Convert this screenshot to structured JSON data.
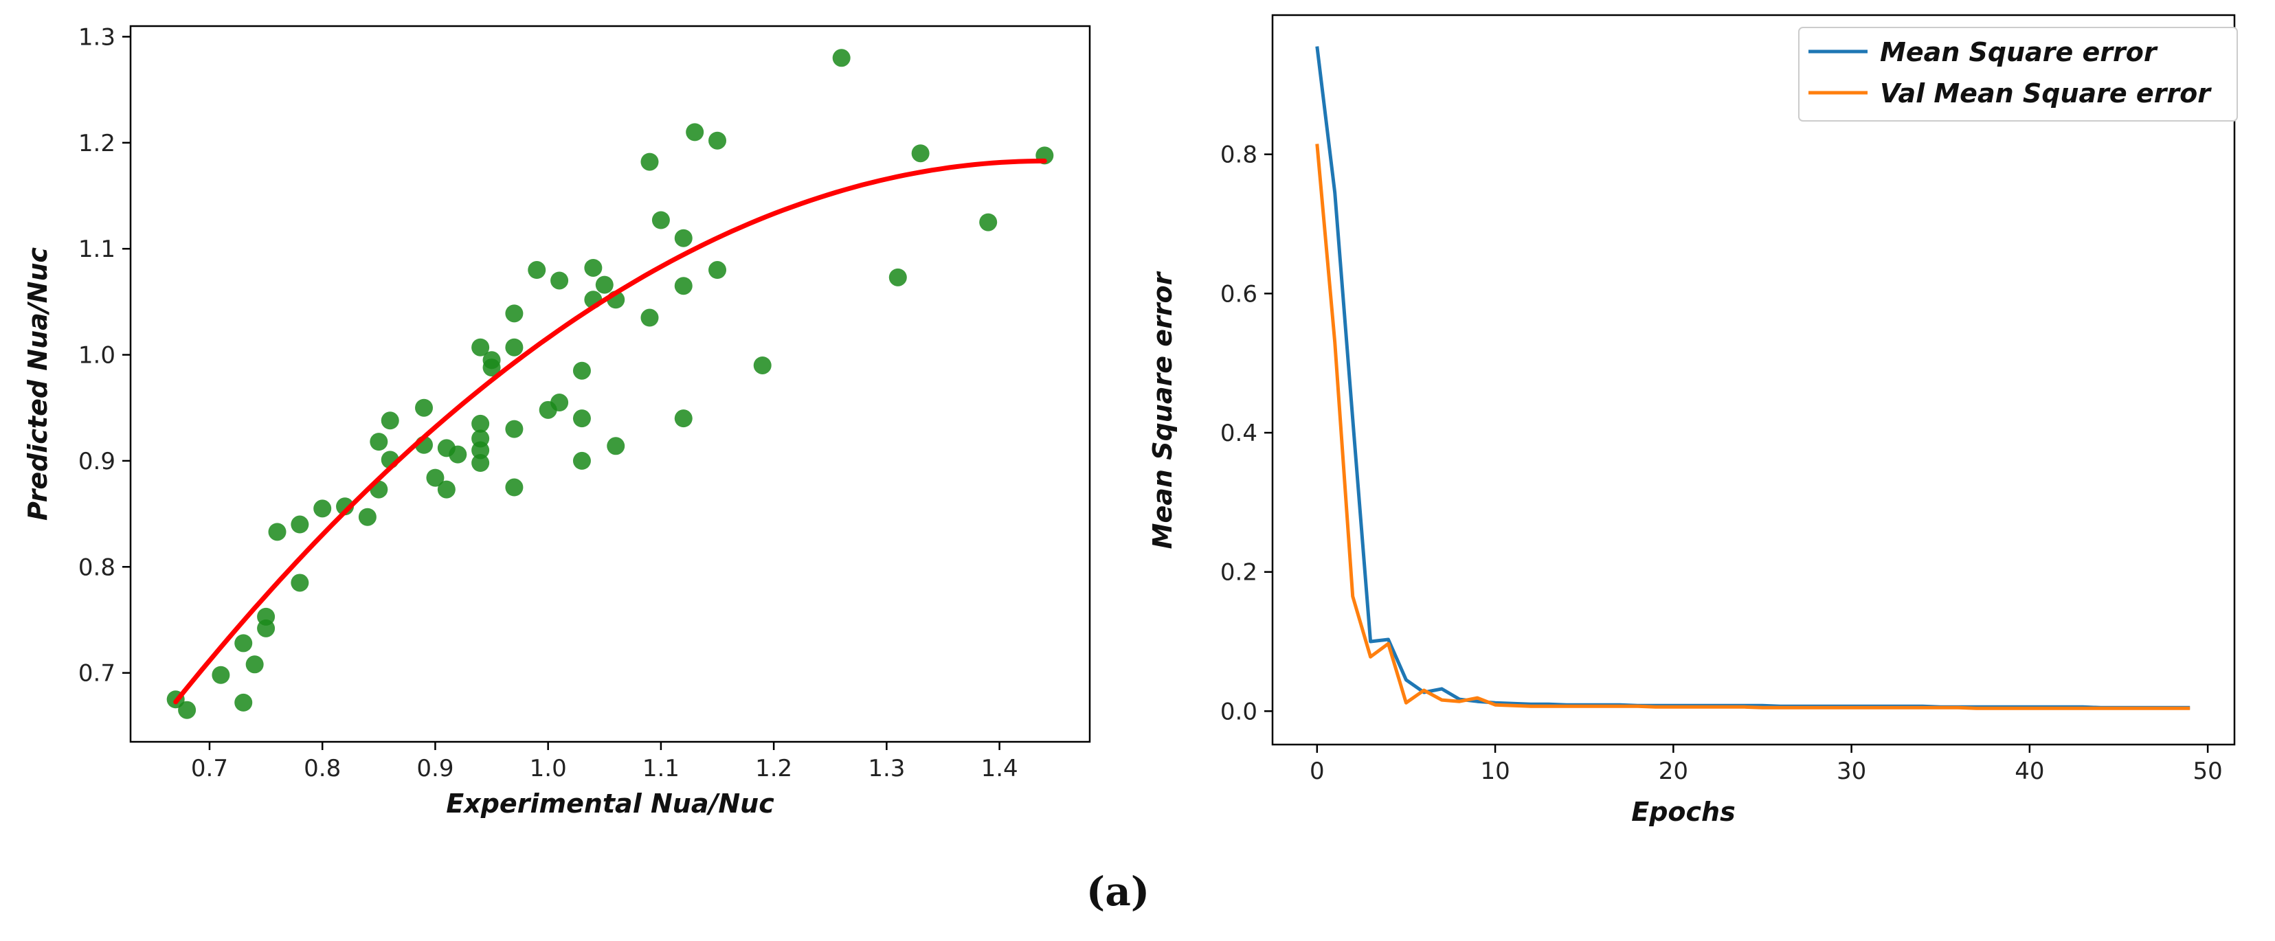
{
  "figure": {
    "caption": "(a)"
  },
  "chart_data": [
    {
      "type": "scatter",
      "name": "prediction-scatter",
      "xlabel": "Experimental Nua/Nuc",
      "ylabel": "Predicted Nua/Nuc",
      "xlim": [
        0.63,
        1.48
      ],
      "ylim": [
        0.635,
        1.31
      ],
      "xticks": [
        0.7,
        0.8,
        0.9,
        1.0,
        1.1,
        1.2,
        1.3,
        1.4
      ],
      "xtick_labels": [
        "0.7",
        "0.8",
        "0.9",
        "1.0",
        "1.1",
        "1.2",
        "1.3",
        "1.4"
      ],
      "yticks": [
        0.7,
        0.8,
        0.9,
        1.0,
        1.1,
        1.2,
        1.3
      ],
      "ytick_labels": [
        "0.7",
        "0.8",
        "0.9",
        "1.0",
        "1.1",
        "1.2",
        "1.3"
      ],
      "grid": false,
      "colors": {
        "points": "#1a8a1a",
        "fit": "#ff0000"
      },
      "points": [
        {
          "x": 0.67,
          "y": 0.675
        },
        {
          "x": 0.68,
          "y": 0.665
        },
        {
          "x": 0.71,
          "y": 0.698
        },
        {
          "x": 0.73,
          "y": 0.728
        },
        {
          "x": 0.73,
          "y": 0.672
        },
        {
          "x": 0.74,
          "y": 0.708
        },
        {
          "x": 0.75,
          "y": 0.742
        },
        {
          "x": 0.75,
          "y": 0.753
        },
        {
          "x": 0.76,
          "y": 0.833
        },
        {
          "x": 0.78,
          "y": 0.785
        },
        {
          "x": 0.78,
          "y": 0.84
        },
        {
          "x": 0.8,
          "y": 0.855
        },
        {
          "x": 0.82,
          "y": 0.857
        },
        {
          "x": 0.84,
          "y": 0.847
        },
        {
          "x": 0.85,
          "y": 0.873
        },
        {
          "x": 0.85,
          "y": 0.918
        },
        {
          "x": 0.86,
          "y": 0.938
        },
        {
          "x": 0.86,
          "y": 0.901
        },
        {
          "x": 0.89,
          "y": 0.915
        },
        {
          "x": 0.89,
          "y": 0.95
        },
        {
          "x": 0.9,
          "y": 0.884
        },
        {
          "x": 0.91,
          "y": 0.873
        },
        {
          "x": 0.91,
          "y": 0.912
        },
        {
          "x": 0.92,
          "y": 0.906
        },
        {
          "x": 0.94,
          "y": 0.898
        },
        {
          "x": 0.94,
          "y": 0.91
        },
        {
          "x": 0.94,
          "y": 0.921
        },
        {
          "x": 0.94,
          "y": 0.935
        },
        {
          "x": 0.94,
          "y": 1.007
        },
        {
          "x": 0.95,
          "y": 0.988
        },
        {
          "x": 0.95,
          "y": 0.995
        },
        {
          "x": 0.97,
          "y": 0.875
        },
        {
          "x": 0.97,
          "y": 0.93
        },
        {
          "x": 0.97,
          "y": 1.007
        },
        {
          "x": 0.97,
          "y": 1.039
        },
        {
          "x": 0.99,
          "y": 1.08
        },
        {
          "x": 1.0,
          "y": 0.948
        },
        {
          "x": 1.01,
          "y": 0.955
        },
        {
          "x": 1.01,
          "y": 1.07
        },
        {
          "x": 1.03,
          "y": 0.9
        },
        {
          "x": 1.03,
          "y": 0.94
        },
        {
          "x": 1.03,
          "y": 0.985
        },
        {
          "x": 1.04,
          "y": 1.052
        },
        {
          "x": 1.04,
          "y": 1.082
        },
        {
          "x": 1.05,
          "y": 1.066
        },
        {
          "x": 1.06,
          "y": 0.914
        },
        {
          "x": 1.06,
          "y": 1.052
        },
        {
          "x": 1.09,
          "y": 1.035
        },
        {
          "x": 1.09,
          "y": 1.182
        },
        {
          "x": 1.1,
          "y": 1.127
        },
        {
          "x": 1.12,
          "y": 0.94
        },
        {
          "x": 1.12,
          "y": 1.065
        },
        {
          "x": 1.12,
          "y": 1.11
        },
        {
          "x": 1.13,
          "y": 1.21
        },
        {
          "x": 1.15,
          "y": 1.08
        },
        {
          "x": 1.15,
          "y": 1.202
        },
        {
          "x": 1.19,
          "y": 0.99
        },
        {
          "x": 1.26,
          "y": 1.28
        },
        {
          "x": 1.31,
          "y": 1.073
        },
        {
          "x": 1.33,
          "y": 1.19
        },
        {
          "x": 1.39,
          "y": 1.125
        },
        {
          "x": 1.44,
          "y": 1.188
        }
      ],
      "fit_curve": {
        "type": "quadratic",
        "x_range": [
          0.67,
          1.44
        ],
        "equation": {
          "a": -0.859,
          "b": 2.475,
          "c": -0.6
        }
      }
    },
    {
      "type": "line",
      "name": "training-loss",
      "xlabel": "Epochs",
      "ylabel": "Mean Square error",
      "xlim": [
        -2.5,
        51.5
      ],
      "ylim": [
        -0.048,
        1.0
      ],
      "xticks": [
        0,
        10,
        20,
        30,
        40,
        50
      ],
      "xtick_labels": [
        "0",
        "10",
        "20",
        "30",
        "40",
        "50"
      ],
      "yticks": [
        0.0,
        0.2,
        0.4,
        0.6,
        0.8
      ],
      "ytick_labels": [
        "0.0",
        "0.2",
        "0.4",
        "0.6",
        "0.8"
      ],
      "grid": false,
      "legend_position": "top-right",
      "x": [
        0,
        1,
        2,
        3,
        4,
        5,
        6,
        7,
        8,
        9,
        10,
        11,
        12,
        13,
        14,
        15,
        16,
        17,
        18,
        19,
        20,
        21,
        22,
        23,
        24,
        25,
        26,
        27,
        28,
        29,
        30,
        31,
        32,
        33,
        34,
        35,
        36,
        37,
        38,
        39,
        40,
        41,
        42,
        43,
        44,
        45,
        46,
        47,
        48,
        49
      ],
      "series": [
        {
          "name": "Mean Square error",
          "color": "#1f77b4",
          "values": [
            0.955,
            0.745,
            0.42,
            0.1,
            0.103,
            0.045,
            0.027,
            0.032,
            0.017,
            0.014,
            0.012,
            0.011,
            0.01,
            0.01,
            0.009,
            0.009,
            0.009,
            0.009,
            0.008,
            0.008,
            0.008,
            0.008,
            0.008,
            0.008,
            0.008,
            0.008,
            0.007,
            0.007,
            0.007,
            0.007,
            0.007,
            0.007,
            0.007,
            0.007,
            0.007,
            0.006,
            0.006,
            0.006,
            0.006,
            0.006,
            0.006,
            0.006,
            0.006,
            0.006,
            0.005,
            0.005,
            0.005,
            0.005,
            0.005,
            0.005
          ]
        },
        {
          "name": "Val Mean Square error",
          "color": "#ff7f0e",
          "values": [
            0.815,
            0.53,
            0.165,
            0.078,
            0.097,
            0.012,
            0.03,
            0.016,
            0.014,
            0.019,
            0.009,
            0.008,
            0.007,
            0.007,
            0.007,
            0.007,
            0.007,
            0.007,
            0.007,
            0.006,
            0.006,
            0.006,
            0.006,
            0.006,
            0.006,
            0.005,
            0.005,
            0.005,
            0.005,
            0.005,
            0.005,
            0.005,
            0.005,
            0.005,
            0.005,
            0.005,
            0.005,
            0.004,
            0.004,
            0.004,
            0.004,
            0.004,
            0.004,
            0.004,
            0.004,
            0.004,
            0.004,
            0.004,
            0.004,
            0.004
          ]
        }
      ]
    }
  ]
}
